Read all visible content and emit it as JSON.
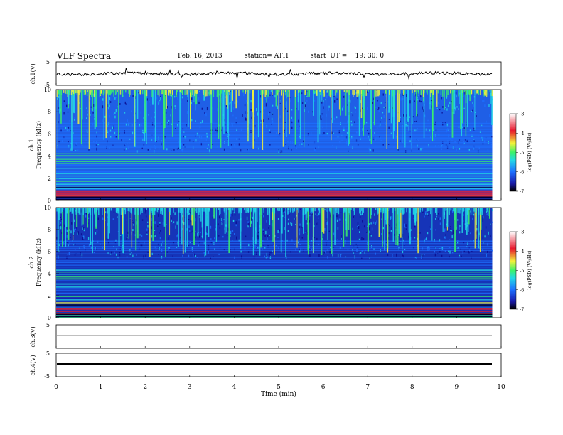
{
  "header": {
    "title": "VLF Spectra",
    "date": "Feb. 16, 2013",
    "station": "station= ATH",
    "start": "start  UT =    19: 30: 0"
  },
  "chart_data": [
    {
      "type": "line",
      "name": "ch1-timeseries",
      "ylabel": "ch.1(V)",
      "ylim": [
        -5,
        5
      ],
      "yticks": [
        "5",
        "-5"
      ],
      "xlim": [
        0,
        10
      ],
      "approx_level": 0.0,
      "note_visible": "fluctuating trace near 0 V"
    },
    {
      "type": "heatmap",
      "name": "ch1-spectrogram",
      "ylabel": "ch.1\nFrequency (kHz)",
      "ylabel_lines": [
        "ch.1",
        "Frequency (kHz)"
      ],
      "ylim": [
        0,
        10
      ],
      "yticks": [
        "0",
        "2",
        "4",
        "6",
        "8",
        "10"
      ],
      "xlim": [
        0,
        9.8
      ],
      "colorbar": {
        "label": "log(PSD) (V²/Hz)",
        "range": [
          -7,
          -3
        ],
        "ticks": [
          "-3",
          "-4",
          "-5",
          "-6",
          "-7"
        ]
      }
    },
    {
      "type": "heatmap",
      "name": "ch2-spectrogram",
      "ylabel_lines": [
        "ch.2",
        "Frequency (kHz)"
      ],
      "ylim": [
        0,
        10
      ],
      "yticks": [
        "0",
        "2",
        "4",
        "6",
        "8",
        "10"
      ],
      "xlim": [
        0,
        9.8
      ],
      "colorbar": {
        "label": "log(PSD) (V²/Hz)",
        "range": [
          -7,
          -3
        ],
        "ticks": [
          "-3",
          "-4",
          "-5",
          "-6",
          "-7"
        ]
      }
    },
    {
      "type": "line",
      "name": "ch3-timeseries",
      "ylabel": "ch.3(V)",
      "ylim": [
        -5,
        5
      ],
      "yticks": [
        "5"
      ],
      "approx_level": 0.0
    },
    {
      "type": "line",
      "name": "ch4-timeseries",
      "ylabel": "ch.4(V)",
      "ylim": [
        -5,
        5
      ],
      "yticks": [
        "5",
        "-5"
      ],
      "approx_level": 0.0
    }
  ],
  "xaxis": {
    "label": "Time  (min)",
    "ticks": [
      "0",
      "1",
      "2",
      "3",
      "4",
      "5",
      "6",
      "7",
      "8",
      "9",
      "10"
    ],
    "range": [
      0,
      10
    ]
  },
  "colors": {
    "low": "#0a0a8c",
    "mid": "#1d6fff",
    "cyan": "#22d8e6",
    "green": "#3bf26b",
    "yellow": "#f3f23a",
    "red": "#e8162b"
  }
}
